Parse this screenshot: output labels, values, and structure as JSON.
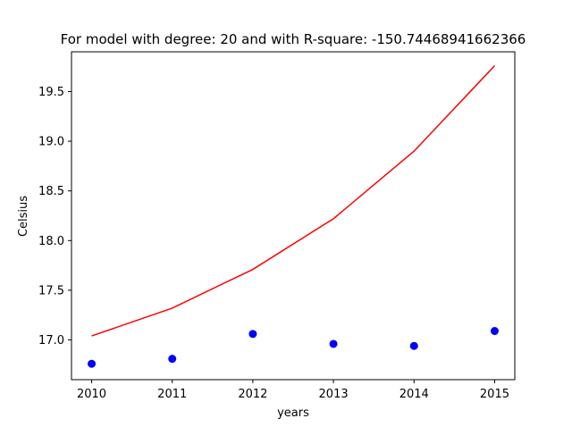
{
  "chart_data": {
    "type": "scatter",
    "title": "For model with degree: 20 and with R-square: -150.74468941662366",
    "xlabel": "years",
    "ylabel": "Celsius",
    "xlim": [
      2009.75,
      2015.25
    ],
    "ylim": [
      16.6,
      19.9
    ],
    "x_ticks": [
      "2010",
      "2011",
      "2012",
      "2013",
      "2014",
      "2015"
    ],
    "y_ticks": [
      "17.0",
      "17.5",
      "18.0",
      "18.5",
      "19.0",
      "19.5"
    ],
    "grid": false,
    "series": [
      {
        "kind": "scatter",
        "color": "#0000ff",
        "points": [
          {
            "x": 2010,
            "y": 16.76
          },
          {
            "x": 2011,
            "y": 16.81
          },
          {
            "x": 2012,
            "y": 17.06
          },
          {
            "x": 2013,
            "y": 16.96
          },
          {
            "x": 2014,
            "y": 16.94
          },
          {
            "x": 2015,
            "y": 17.09
          }
        ]
      },
      {
        "kind": "line",
        "color": "#ff0000",
        "points": [
          {
            "x": 2010,
            "y": 17.04
          },
          {
            "x": 2011,
            "y": 17.32
          },
          {
            "x": 2012,
            "y": 17.71
          },
          {
            "x": 2013,
            "y": 18.22
          },
          {
            "x": 2014,
            "y": 18.9
          },
          {
            "x": 2015,
            "y": 19.76
          }
        ]
      }
    ]
  }
}
